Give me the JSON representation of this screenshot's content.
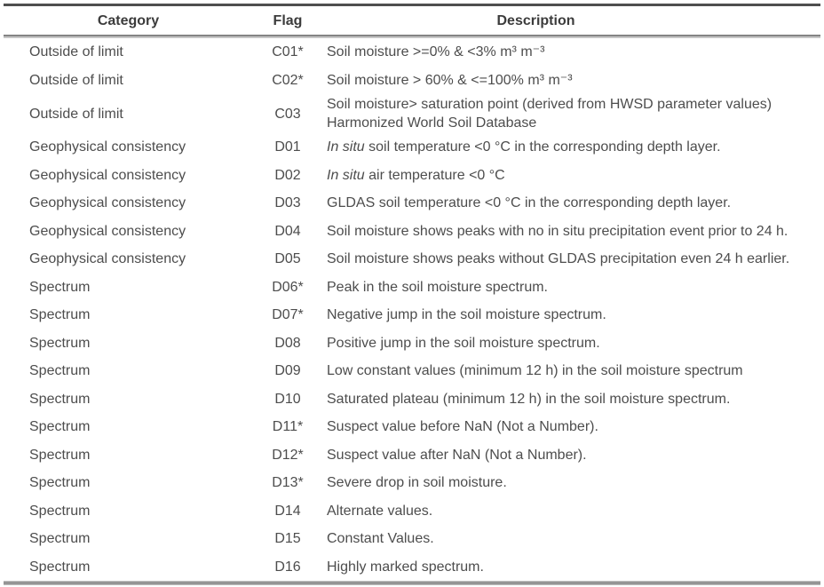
{
  "table": {
    "headers": {
      "category": "Category",
      "flag": "Flag",
      "description": "Description"
    },
    "rows": [
      {
        "category": "Outside of limit",
        "flag": "C01*",
        "description": {
          "text": "Soil moisture >=0% & <3% m³ m⁻³"
        }
      },
      {
        "category": "Outside of limit",
        "flag": "C02*",
        "description": {
          "text": "Soil moisture > 60% & <=100% m³ m⁻³"
        }
      },
      {
        "category": "Outside of limit",
        "flag": "C03",
        "description": {
          "text": "Soil moisture> saturation point (derived from HWSD parameter values) Harmonized World Soil Database"
        }
      },
      {
        "category": "Geophysical consistency",
        "flag": "D01",
        "description": {
          "italic_prefix": "In situ",
          "text": " soil temperature <0 °C in the corresponding depth layer."
        }
      },
      {
        "category": "Geophysical consistency",
        "flag": "D02",
        "description": {
          "italic_prefix": "In situ",
          "text": " air temperature <0 °C"
        }
      },
      {
        "category": "Geophysical consistency",
        "flag": "D03",
        "description": {
          "text": "GLDAS soil temperature <0 °C in the corresponding depth layer."
        }
      },
      {
        "category": "Geophysical consistency",
        "flag": "D04",
        "description": {
          "text": "Soil moisture shows peaks with no in situ precipitation event prior to 24 h."
        }
      },
      {
        "category": "Geophysical consistency",
        "flag": "D05",
        "description": {
          "text": "Soil moisture shows peaks without GLDAS precipitation even 24 h earlier."
        }
      },
      {
        "category": "Spectrum",
        "flag": "D06*",
        "description": {
          "text": "Peak in the soil moisture spectrum."
        }
      },
      {
        "category": "Spectrum",
        "flag": "D07*",
        "description": {
          "text": "Negative jump in the soil moisture spectrum."
        }
      },
      {
        "category": "Spectrum",
        "flag": "D08",
        "description": {
          "text": "Positive jump in the soil moisture spectrum."
        }
      },
      {
        "category": "Spectrum",
        "flag": "D09",
        "description": {
          "text": "Low constant values (minimum 12 h) in the soil moisture spectrum"
        }
      },
      {
        "category": "Spectrum",
        "flag": "D10",
        "description": {
          "text": "Saturated plateau (minimum 12 h) in the soil moisture spectrum."
        }
      },
      {
        "category": "Spectrum",
        "flag": "D11*",
        "description": {
          "text": "Suspect value before NaN (Not a Number)."
        }
      },
      {
        "category": "Spectrum",
        "flag": "D12*",
        "description": {
          "text": "Suspect value after NaN (Not a Number)."
        }
      },
      {
        "category": "Spectrum",
        "flag": "D13*",
        "description": {
          "text": "Severe drop in soil moisture."
        }
      },
      {
        "category": "Spectrum",
        "flag": "D14",
        "description": {
          "text": "Alternate values."
        }
      },
      {
        "category": "Spectrum",
        "flag": "D15",
        "description": {
          "text": "Constant Values."
        }
      },
      {
        "category": "Spectrum",
        "flag": "D16",
        "description": {
          "text": "Highly marked spectrum."
        }
      }
    ]
  },
  "colors": {
    "text": "#4d4d4d",
    "header-text": "#3c3c3c",
    "rule-dark": "#4e4e4e",
    "rule-gray": "#909090",
    "bg": "#ffffff"
  }
}
